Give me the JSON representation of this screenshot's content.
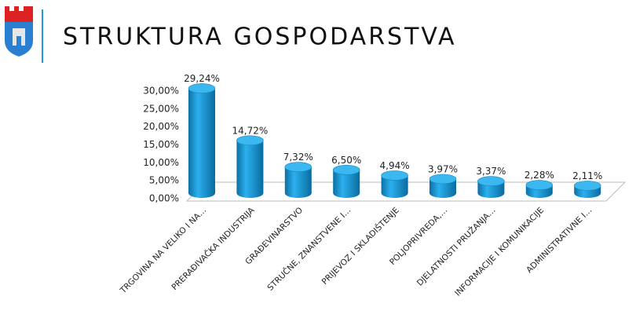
{
  "chart_data": {
    "type": "bar",
    "title": "STRUKTURA GOSPODARSTVA",
    "categories": [
      "TRGOVINA NA VELIKO I NA…",
      "PRERAĐIVAČKA INDUSTRIJA",
      "GRAĐEVINARSTVO",
      "STRUČNE, ZNANSTVENE I…",
      "PRIJEVOZ I SKLADIŠTENJE",
      "POLJOPRIVREDA,…",
      "DJELATNOSTI PRUŽANJA…",
      "INFORMACIJE I KOMUNIKACIJE",
      "ADMINISTRATIVNE I…"
    ],
    "values": [
      29.24,
      14.72,
      7.32,
      6.5,
      4.94,
      3.97,
      3.37,
      2.28,
      2.11
    ],
    "value_labels": [
      "29,24%",
      "14,72%",
      "7,32%",
      "6,50%",
      "4,94%",
      "3,97%",
      "3,37%",
      "2,28%",
      "2,11%"
    ],
    "color": "#1a9ad6",
    "ylim": [
      0,
      30
    ],
    "yticks": [
      {
        "value": 0,
        "label": "0,00%"
      },
      {
        "value": 5,
        "label": "5,00%"
      },
      {
        "value": 10,
        "label": "10,00%"
      },
      {
        "value": 15,
        "label": "15,00%"
      },
      {
        "value": 20,
        "label": "20,00%"
      },
      {
        "value": 25,
        "label": "25,00%"
      },
      {
        "value": 30,
        "label": "30,00%"
      }
    ]
  }
}
